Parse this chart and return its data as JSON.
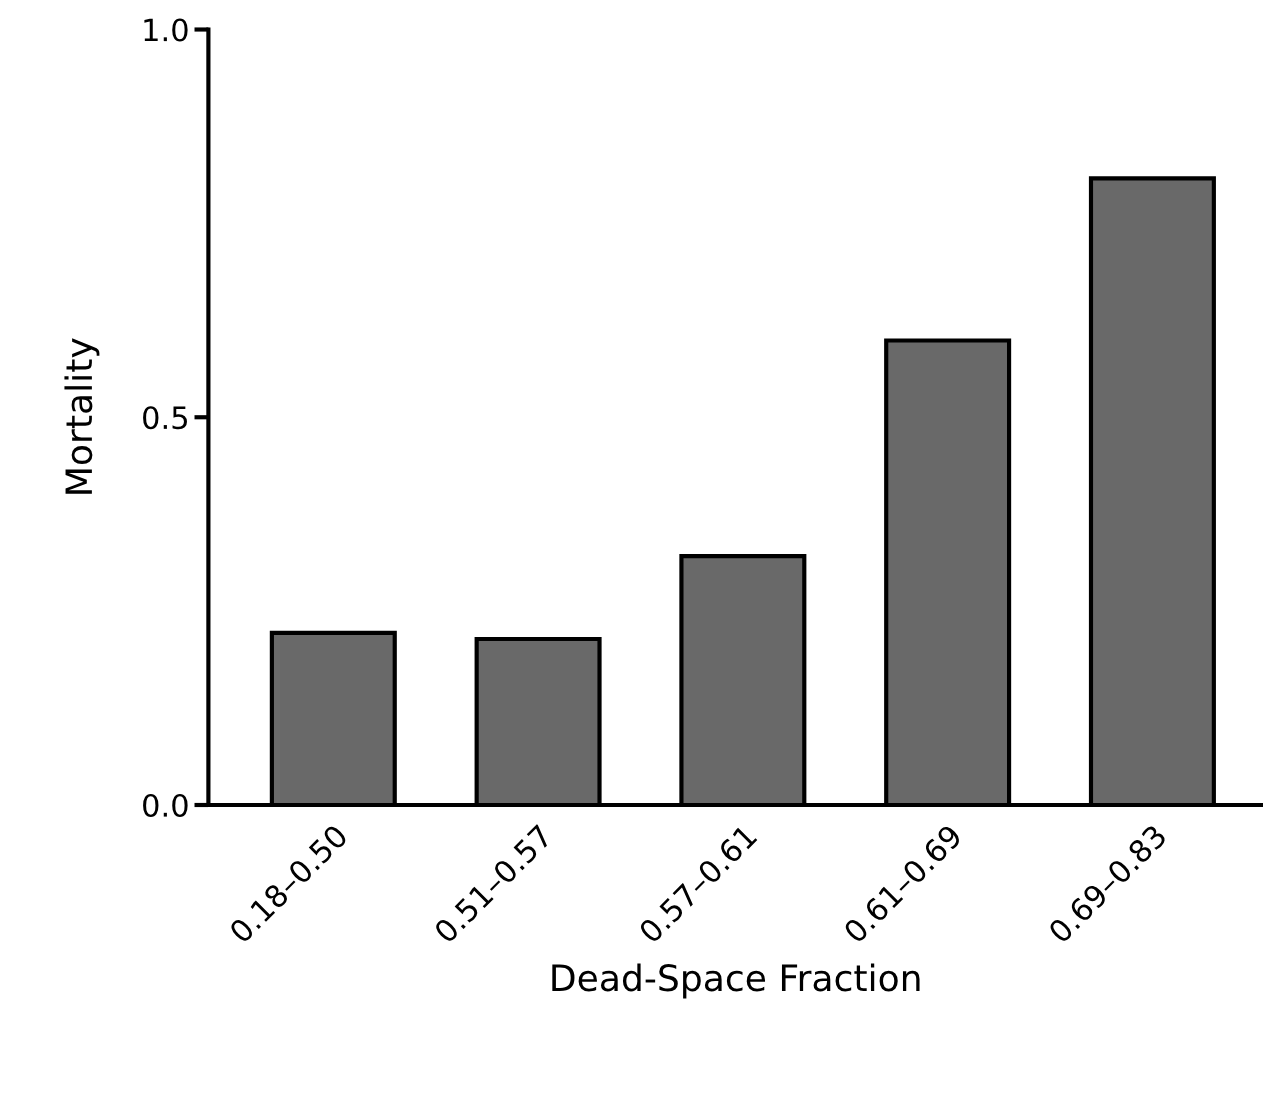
{
  "chart_data": {
    "type": "bar",
    "xlabel": "Dead-Space Fraction",
    "ylabel": "Mortality",
    "categories": [
      "0.18–0.50",
      "0.51–0.57",
      "0.57–0.61",
      "0.61–0.69",
      "0.69–0.83"
    ],
    "values": [
      0.222,
      0.214,
      0.321,
      0.599,
      0.808
    ],
    "color": "#696969",
    "ylim": [
      0,
      1.0
    ],
    "yticks": [
      {
        "value": 0,
        "label": "0.0"
      },
      {
        "value": 0.5,
        "label": "0.5"
      },
      {
        "value": 1.0,
        "label": "1.0"
      }
    ],
    "grid": false,
    "legend": false
  }
}
